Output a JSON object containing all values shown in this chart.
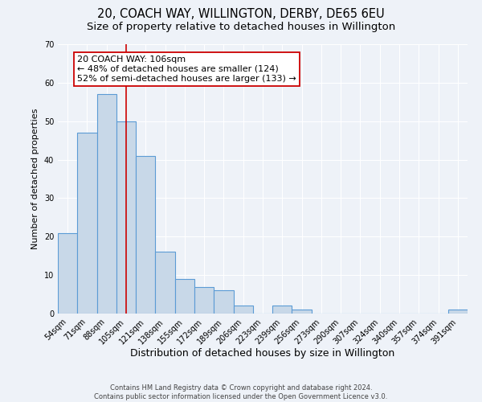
{
  "title": "20, COACH WAY, WILLINGTON, DERBY, DE65 6EU",
  "subtitle": "Size of property relative to detached houses in Willington",
  "xlabel": "Distribution of detached houses by size in Willington",
  "ylabel": "Number of detached properties",
  "bar_color": "#c8d8e8",
  "bar_edge_color": "#5b9bd5",
  "bar_edge_width": 0.8,
  "categories": [
    "54sqm",
    "71sqm",
    "88sqm",
    "105sqm",
    "121sqm",
    "138sqm",
    "155sqm",
    "172sqm",
    "189sqm",
    "206sqm",
    "223sqm",
    "239sqm",
    "256sqm",
    "273sqm",
    "290sqm",
    "307sqm",
    "324sqm",
    "340sqm",
    "357sqm",
    "374sqm",
    "391sqm"
  ],
  "values": [
    21,
    47,
    57,
    50,
    41,
    16,
    9,
    7,
    6,
    2,
    0,
    2,
    1,
    0,
    0,
    0,
    0,
    0,
    0,
    0,
    1
  ],
  "ylim": [
    0,
    70
  ],
  "yticks": [
    0,
    10,
    20,
    30,
    40,
    50,
    60,
    70
  ],
  "vline_x_index": 3,
  "vline_color": "#cc0000",
  "annotation_line1": "20 COACH WAY: 106sqm",
  "annotation_line2": "← 48% of detached houses are smaller (124)",
  "annotation_line3": "52% of semi-detached houses are larger (133) →",
  "annotation_box_color": "white",
  "annotation_box_edge_color": "#cc0000",
  "footer_line1": "Contains HM Land Registry data © Crown copyright and database right 2024.",
  "footer_line2": "Contains public sector information licensed under the Open Government Licence v3.0.",
  "background_color": "#eef2f8",
  "grid_color": "white",
  "title_fontsize": 10.5,
  "subtitle_fontsize": 9.5,
  "xlabel_fontsize": 9,
  "ylabel_fontsize": 8,
  "tick_fontsize": 7,
  "footer_fontsize": 6,
  "annotation_fontsize": 8
}
